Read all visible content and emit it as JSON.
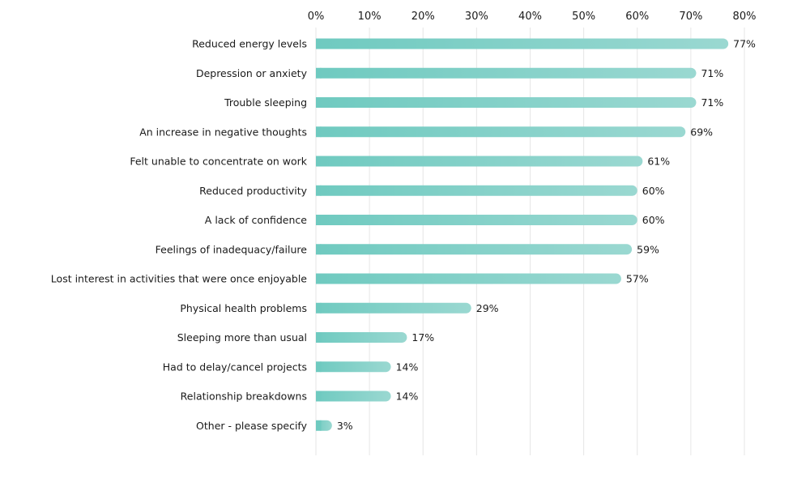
{
  "chart_data": {
    "type": "bar",
    "orientation": "horizontal",
    "title": "",
    "xlabel": "",
    "ylabel": "",
    "xlim": [
      0,
      80
    ],
    "x_ticks": [
      "0%",
      "10%",
      "20%",
      "30%",
      "40%",
      "50%",
      "60%",
      "70%",
      "80%"
    ],
    "x_tick_values": [
      0,
      10,
      20,
      30,
      40,
      50,
      60,
      70,
      80
    ],
    "grid": true,
    "legend": "none",
    "bar_color_start": "#6fcac0",
    "bar_color_end": "#9ad8d1",
    "categories": [
      "Reduced energy levels",
      "Depression or anxiety",
      "Trouble sleeping",
      "An increase in negative thoughts",
      "Felt unable to concentrate on work",
      "Reduced productivity",
      "A lack of confidence",
      "Feelings of inadequacy/failure",
      "Lost interest in activities that were once enjoyable",
      "Physical health problems",
      "Sleeping more than usual",
      "Had to delay/cancel projects",
      "Relationship breakdowns",
      "Other - please specify"
    ],
    "values": [
      77,
      71,
      71,
      69,
      61,
      60,
      60,
      59,
      57,
      29,
      17,
      14,
      14,
      3
    ],
    "value_labels": [
      "77%",
      "71%",
      "71%",
      "69%",
      "61%",
      "60%",
      "60%",
      "59%",
      "57%",
      "29%",
      "17%",
      "14%",
      "14%",
      "3%"
    ]
  }
}
